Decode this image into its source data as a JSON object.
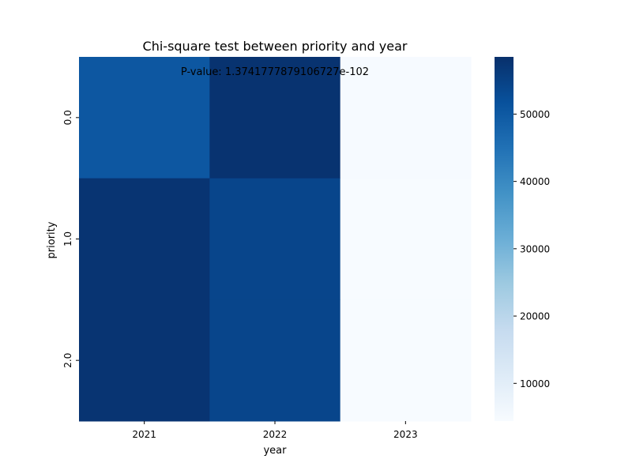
{
  "chart_data": {
    "type": "heatmap",
    "title": "Chi-square test between priority and year",
    "annotation": "P-value: 1.3741777879106727e-102",
    "xlabel": "year",
    "ylabel": "priority",
    "x_categories": [
      "2021",
      "2022",
      "2023"
    ],
    "y_categories": [
      "0.0",
      "1.0",
      "2.0"
    ],
    "values": [
      [
        50500,
        57800,
        4700
      ],
      [
        57600,
        54100,
        4400
      ],
      [
        57600,
        54100,
        4400
      ]
    ],
    "colormap": "Blues",
    "colorbar": {
      "range": [
        4400,
        58500
      ],
      "ticks": [
        10000,
        20000,
        30000,
        40000,
        50000
      ],
      "tick_labels": [
        "10000",
        "20000",
        "30000",
        "40000",
        "50000"
      ]
    }
  }
}
